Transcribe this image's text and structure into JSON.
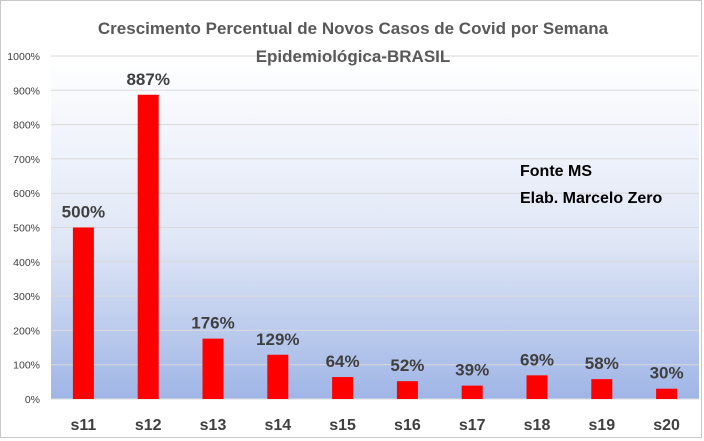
{
  "chart_data": {
    "type": "bar",
    "title": "Crescimento Percentual de Novos Casos de Covid  por Semana",
    "subtitle": "Epidemiológica-BRASIL",
    "categories": [
      "s11",
      "s12",
      "s13",
      "s14",
      "s15",
      "s16",
      "s17",
      "s18",
      "s19",
      "s20"
    ],
    "values": [
      500,
      887,
      176,
      129,
      64,
      52,
      39,
      69,
      58,
      30
    ],
    "data_labels": [
      "500%",
      "887%",
      "176%",
      "129%",
      "64%",
      "52%",
      "39%",
      "69%",
      "58%",
      "30%"
    ],
    "ylim": [
      0,
      1000
    ],
    "yticks": [
      "0%",
      "100%",
      "200%",
      "300%",
      "400%",
      "500%",
      "600%",
      "700%",
      "800%",
      "900%",
      "1000%"
    ],
    "grid": true,
    "bar_color": "#ff0000",
    "annotations": [
      "Fonte MS",
      "Elab. Marcelo Zero"
    ]
  }
}
